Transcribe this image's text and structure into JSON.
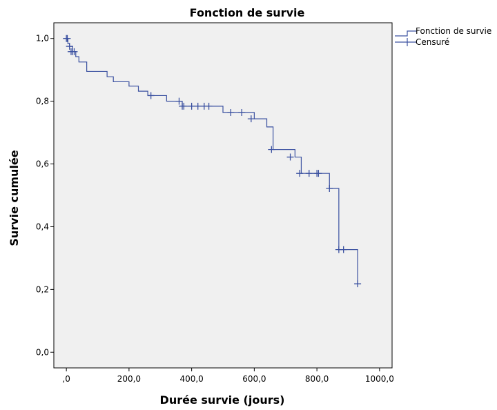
{
  "chart_data": {
    "type": "line",
    "title": "Fonction de survie",
    "xlabel": "Durée survie (jours)",
    "ylabel": "Survie cumulée",
    "xlim": [
      -40,
      1040
    ],
    "ylim": [
      -0.05,
      1.05
    ],
    "x_ticks": [
      0,
      200,
      400,
      600,
      800,
      1000
    ],
    "x_tick_labels": [
      ",0",
      "200,0",
      "400,0",
      "600,0",
      "800,0",
      "1000,0"
    ],
    "y_ticks": [
      0,
      0.2,
      0.4,
      0.6,
      0.8,
      1.0
    ],
    "y_tick_labels": [
      "0,0",
      "0,2",
      "0,4",
      "0,6",
      "0,8",
      "1,0"
    ],
    "grid": false,
    "legend_position": "top-right",
    "colors": {
      "line": "#3a50a0",
      "plot_bg": "#f0f0f0",
      "frame": "#000000"
    },
    "series": [
      {
        "name": "Fonction de survie",
        "style": "step",
        "x": [
          0,
          5,
          10,
          20,
          30,
          40,
          65,
          130,
          150,
          200,
          230,
          260,
          320,
          370,
          450,
          500,
          570,
          600,
          640,
          660,
          700,
          730,
          750,
          800,
          830,
          840,
          870,
          900,
          930
        ],
        "y": [
          1.0,
          0.983,
          0.975,
          0.958,
          0.942,
          0.925,
          0.895,
          0.878,
          0.862,
          0.848,
          0.832,
          0.818,
          0.8,
          0.784,
          0.784,
          0.764,
          0.764,
          0.744,
          0.718,
          0.646,
          0.646,
          0.622,
          0.57,
          0.57,
          0.57,
          0.522,
          0.327,
          0.327,
          0.218
        ]
      },
      {
        "name": "Censuré",
        "style": "markers",
        "x": [
          0,
          3,
          10,
          15,
          20,
          25,
          270,
          360,
          370,
          375,
          400,
          420,
          440,
          455,
          525,
          560,
          590,
          655,
          715,
          745,
          775,
          800,
          805,
          840,
          870,
          885,
          930
        ],
        "y": [
          1.0,
          1.0,
          0.975,
          0.958,
          0.958,
          0.958,
          0.818,
          0.8,
          0.784,
          0.784,
          0.784,
          0.784,
          0.784,
          0.784,
          0.764,
          0.764,
          0.744,
          0.646,
          0.622,
          0.57,
          0.57,
          0.57,
          0.57,
          0.522,
          0.327,
          0.327,
          0.218
        ]
      }
    ]
  }
}
